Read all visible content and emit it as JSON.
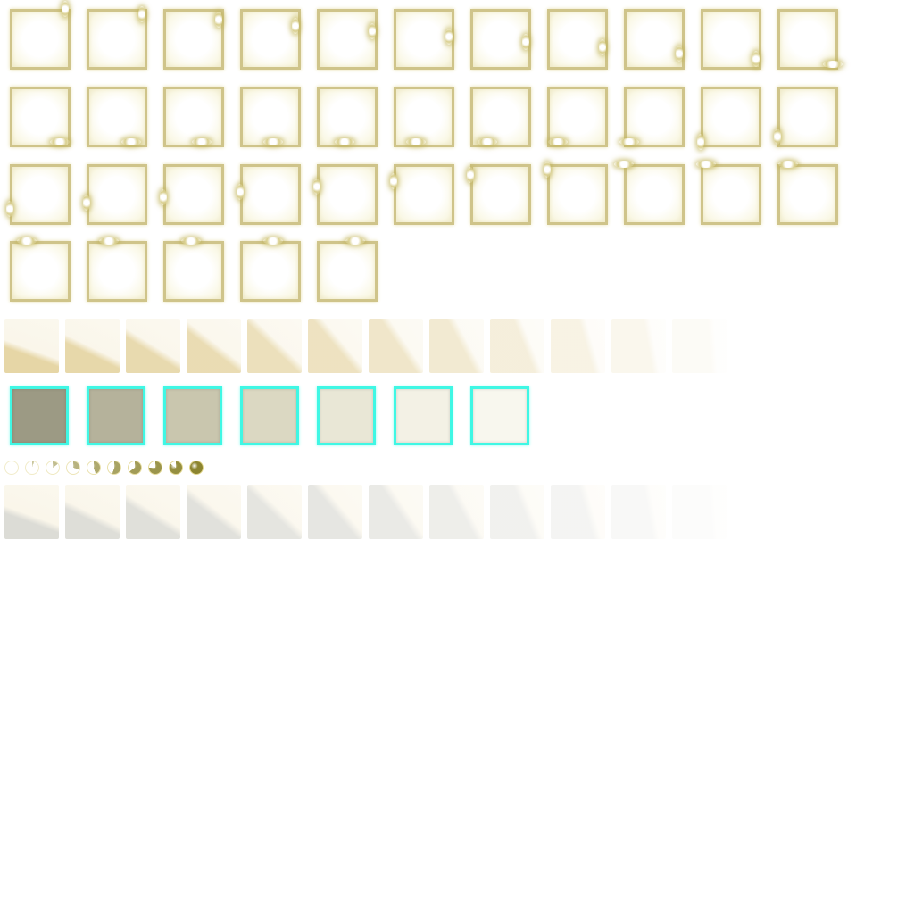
{
  "sprite_sheet": {
    "frame_border_color": "#cfc48a",
    "glint_frames": [
      0,
      0.025,
      0.05,
      0.075,
      0.1,
      0.125,
      0.15,
      0.175,
      0.2,
      0.225,
      0.25,
      0.275,
      0.3,
      0.325,
      0.35,
      0.375,
      0.4,
      0.425,
      0.45,
      0.475,
      0.5,
      0.525,
      0.55,
      0.575,
      0.6,
      0.625,
      0.65,
      0.675,
      0.7,
      0.725,
      0.75,
      0.775,
      0.8,
      0.825,
      0.85,
      0.875,
      0.9,
      0.925
    ],
    "gold_tiles": {
      "color": "#e6d6a6",
      "opacity_levels": [
        1,
        0.95,
        0.9,
        0.85,
        0.75,
        0.7,
        0.6,
        0.5,
        0.4,
        0.3,
        0.2,
        0.1
      ]
    },
    "highlight_boxes": {
      "border_color": "#3ff7e4",
      "fills": [
        "#9c9a84",
        "#b5b29b",
        "#c9c6ae",
        "#dbd8c2",
        "#e9e7d6",
        "#f3f1e5",
        "#f8f7ee"
      ]
    },
    "fill_orbs": {
      "color": "#8c8530",
      "fill_levels": [
        0,
        0.05,
        0.15,
        0.3,
        0.45,
        0.55,
        0.65,
        0.75,
        0.85,
        1
      ]
    },
    "gray_tiles": {
      "color": "#dcdcd6",
      "opacity_levels": [
        1,
        0.95,
        0.9,
        0.85,
        0.75,
        0.7,
        0.6,
        0.5,
        0.4,
        0.3,
        0.2,
        0.1
      ]
    }
  }
}
